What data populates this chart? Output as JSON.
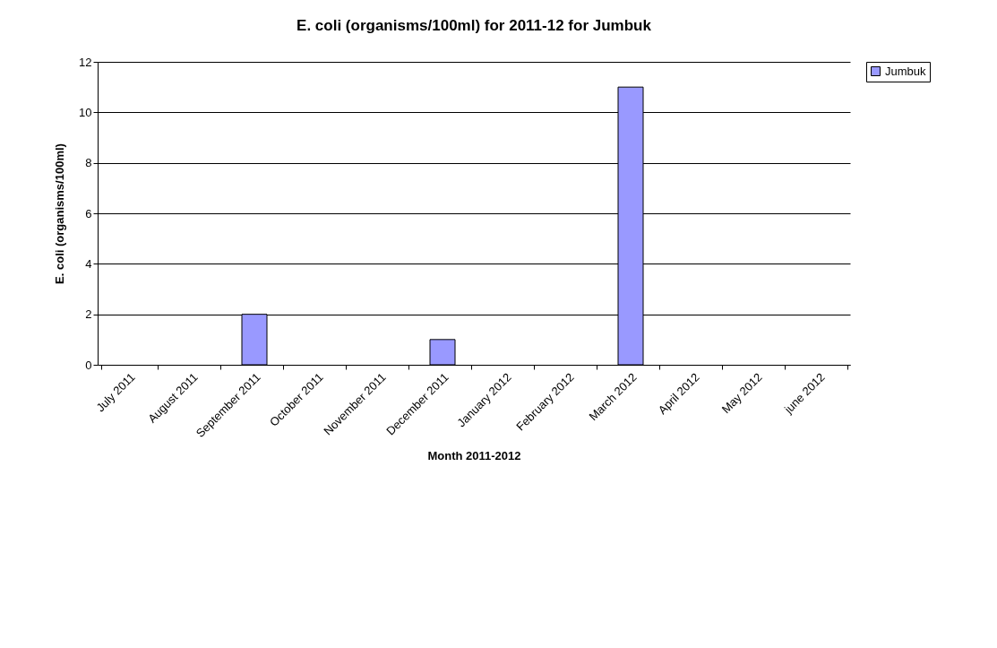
{
  "chart_data": {
    "type": "bar",
    "title": "E. coli (organisms/100ml) for 2011-12 for Jumbuk",
    "xlabel": "Month 2011-2012",
    "ylabel": "E. coli (organisms/100ml)",
    "categories": [
      "July 2011",
      "August 2011",
      "September 2011",
      "October 2011",
      "November 2011",
      "December 2011",
      "January 2012",
      "February 2012",
      "March 2012",
      "April 2012",
      "May 2012",
      "june 2012"
    ],
    "series": [
      {
        "name": "Jumbuk",
        "color": "#9999ff",
        "values": [
          null,
          null,
          2,
          null,
          null,
          1,
          null,
          null,
          11,
          null,
          null,
          null
        ]
      }
    ],
    "ylim": [
      0,
      12
    ],
    "yticks": [
      0,
      2,
      4,
      6,
      8,
      10,
      12
    ],
    "grid": "y",
    "legend": "right"
  }
}
